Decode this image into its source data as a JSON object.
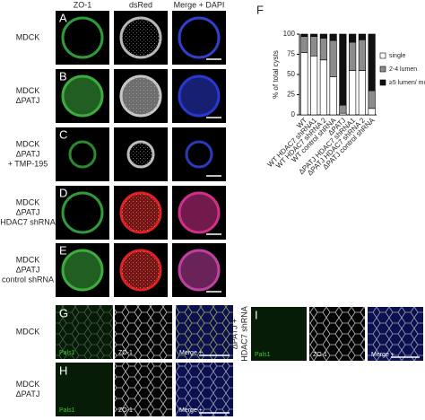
{
  "panels_a_e": {
    "column_headers": [
      "ZO-1",
      "dsRed",
      "Merge + DAPI"
    ],
    "rows": [
      {
        "letter": "A",
        "label": [
          "MDCK"
        ]
      },
      {
        "letter": "B",
        "label": [
          "MDCK",
          "ΔPATJ"
        ]
      },
      {
        "letter": "C",
        "label": [
          "MDCK",
          "ΔPATJ",
          "+ TMP-195"
        ]
      },
      {
        "letter": "D",
        "label": [
          "MDCK",
          "ΔPATJ",
          "HDAC7 shRNA"
        ]
      },
      {
        "letter": "E",
        "label": [
          "MDCK",
          "ΔPATJ",
          "control shRNA"
        ]
      }
    ]
  },
  "chart_data": {
    "type": "bar",
    "letter": "F",
    "stacked": true,
    "y_label": "% of total cysts",
    "categories": [
      "WT",
      "WT HDAC7 shRNA1",
      "WT HDAC7 shRNA 2",
      "WT control shRNA",
      "ΔPATJ",
      "ΔPATJ HDAC7 shRNA1",
      "ΔPATJ HDAC7 shRNA 2",
      "ΔPATJ control shRNA"
    ],
    "series": [
      {
        "name": "single",
        "color": "#ffffff",
        "values": [
          77,
          73,
          68,
          47,
          2,
          55,
          55,
          8
        ]
      },
      {
        "name": "2-4 lumen",
        "color": "#8c8c8c",
        "values": [
          20,
          24,
          27,
          45,
          10,
          35,
          38,
          22
        ]
      },
      {
        "name": "≥5 lumen/ multiluminal",
        "color": "#111111",
        "values": [
          3,
          3,
          5,
          8,
          88,
          10,
          7,
          70
        ]
      }
    ],
    "ylim": [
      0,
      100
    ],
    "yticks": [
      0,
      25,
      50,
      75,
      100
    ],
    "legend": "right"
  },
  "panels_g_i": [
    {
      "letter": "G",
      "label": [
        "MDCK"
      ],
      "channels": [
        "Pals1",
        "ZO-1",
        "Merge +"
      ]
    },
    {
      "letter": "H",
      "label": [
        "MDCK",
        "ΔPATJ"
      ],
      "channels": [
        "Pals1",
        "ZO-1",
        "Merge +"
      ]
    },
    {
      "letter": "I",
      "label": [
        "ΔPATJ +",
        "HDAC7 shRNA"
      ],
      "channels": [
        "Pals1",
        "ZO-1",
        "Merge +"
      ]
    }
  ]
}
